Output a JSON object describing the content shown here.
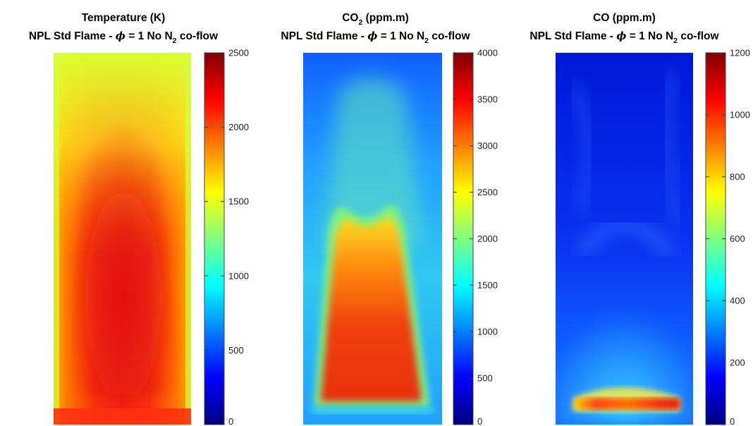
{
  "chart_data": [
    {
      "type": "heatmap",
      "title": "Temperature (K)",
      "subtitle": {
        "prefix": "NPL Std Flame - ",
        "phi_symbol": "ϕ",
        "mid": " = 1 No N",
        "sub": "2",
        "suffix": " co-flow"
      },
      "colorbar": {
        "min": 0,
        "max": 2500,
        "ticks": [
          0,
          500,
          1000,
          1500,
          2000,
          2500
        ],
        "colormap": "jet"
      },
      "field_description": "hot core 2000-2300 K narrowing toward top, cooler edges ~1600-1800 K"
    },
    {
      "type": "heatmap",
      "title": {
        "main": "CO",
        "sub": "2",
        "rest": " (ppm.m)"
      },
      "subtitle": {
        "prefix": "NPL Std Flame - ",
        "phi_symbol": "ϕ",
        "mid": " = 1 No N",
        "sub": "2",
        "suffix": " co-flow"
      },
      "colorbar": {
        "min": 0,
        "max": 4000,
        "ticks": [
          0,
          500,
          1000,
          1500,
          2000,
          2500,
          3000,
          3500,
          4000
        ],
        "colormap": "jet"
      },
      "field_description": "trapezoidal high region ~3300-3600 ppm.m in lower half, decaying to ~1000 ppm.m above"
    },
    {
      "type": "heatmap",
      "title": "CO (ppm.m)",
      "subtitle": {
        "prefix": "NPL Std Flame - ",
        "phi_symbol": "ϕ",
        "mid": " = 1 No N",
        "sub": "2",
        "suffix": " co-flow"
      },
      "colorbar": {
        "min": 0,
        "max": 1200,
        "ticks": [
          0,
          200,
          400,
          600,
          800,
          1000,
          1200
        ],
        "colormap": "jet"
      },
      "field_description": "thin band ~1000-1100 ppm.m near base, mostly 100-300 ppm.m elsewhere"
    }
  ],
  "colors": {
    "jet": [
      "#00007f",
      "#0000ff",
      "#007fff",
      "#00ffff",
      "#7fff7f",
      "#ffff00",
      "#ff7f00",
      "#ff0000",
      "#7f0000"
    ]
  }
}
